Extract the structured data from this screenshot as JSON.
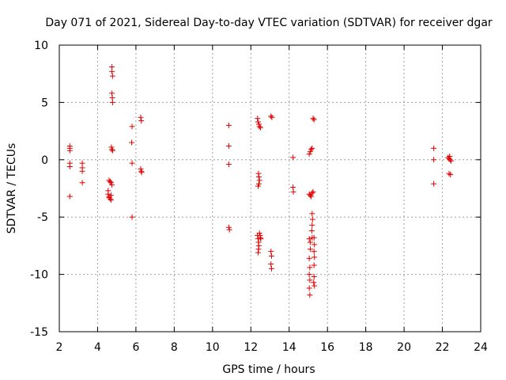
{
  "chart_data": {
    "type": "scatter",
    "title": "Day 071 of 2021, Sidereal Day-to-day VTEC variation (SDTVAR) for receiver dgar",
    "xlabel": "GPS time / hours",
    "ylabel": "SDTVAR / TECUs",
    "xlim": [
      2,
      24
    ],
    "ylim": [
      -15,
      10
    ],
    "xticks": [
      2,
      4,
      6,
      8,
      10,
      12,
      14,
      16,
      18,
      20,
      22,
      24
    ],
    "yticks": [
      -15,
      -10,
      -5,
      0,
      5,
      10
    ],
    "grid": true,
    "legend": "none",
    "marker": "plus",
    "color": "#e00000",
    "series": [
      {
        "name": "SDTVAR",
        "points": [
          [
            2.55,
            1.2
          ],
          [
            2.55,
            1.0
          ],
          [
            2.55,
            0.8
          ],
          [
            2.55,
            -0.3
          ],
          [
            2.55,
            -0.6
          ],
          [
            2.55,
            -3.2
          ],
          [
            3.2,
            -0.3
          ],
          [
            3.2,
            -0.7
          ],
          [
            3.2,
            -1.0
          ],
          [
            3.2,
            -2.0
          ],
          [
            4.55,
            -2.7
          ],
          [
            4.55,
            -3.0
          ],
          [
            4.6,
            -3.2
          ],
          [
            4.6,
            -3.3
          ],
          [
            4.65,
            -3.4
          ],
          [
            4.7,
            -3.1
          ],
          [
            4.7,
            -3.5
          ],
          [
            4.6,
            -1.8
          ],
          [
            4.65,
            -1.9
          ],
          [
            4.7,
            -2.0
          ],
          [
            4.75,
            -2.2
          ],
          [
            4.75,
            8.1
          ],
          [
            4.75,
            7.7
          ],
          [
            4.78,
            7.3
          ],
          [
            4.75,
            5.8
          ],
          [
            4.77,
            5.4
          ],
          [
            4.78,
            5.0
          ],
          [
            4.72,
            1.1
          ],
          [
            4.75,
            0.9
          ],
          [
            4.78,
            0.8
          ],
          [
            5.8,
            2.9
          ],
          [
            5.78,
            1.5
          ],
          [
            5.8,
            -0.3
          ],
          [
            5.8,
            -5.0
          ],
          [
            6.25,
            3.7
          ],
          [
            6.28,
            3.4
          ],
          [
            6.25,
            -0.8
          ],
          [
            6.28,
            -1.0
          ],
          [
            6.3,
            -1.1
          ],
          [
            10.85,
            3.0
          ],
          [
            10.85,
            1.2
          ],
          [
            10.85,
            -0.4
          ],
          [
            10.85,
            -5.9
          ],
          [
            10.88,
            -6.1
          ],
          [
            12.35,
            3.6
          ],
          [
            12.38,
            3.3
          ],
          [
            12.42,
            3.1
          ],
          [
            12.45,
            2.9
          ],
          [
            12.5,
            2.8
          ],
          [
            12.4,
            -1.2
          ],
          [
            12.42,
            -1.5
          ],
          [
            12.45,
            -1.8
          ],
          [
            12.42,
            -2.1
          ],
          [
            12.38,
            -2.3
          ],
          [
            12.35,
            -6.6
          ],
          [
            12.38,
            -6.9
          ],
          [
            12.4,
            -7.2
          ],
          [
            12.42,
            -7.5
          ],
          [
            12.4,
            -7.8
          ],
          [
            12.38,
            -8.1
          ],
          [
            12.45,
            -6.4
          ],
          [
            12.48,
            -6.6
          ],
          [
            12.5,
            -6.8
          ],
          [
            12.52,
            -6.9
          ],
          [
            13.05,
            3.8
          ],
          [
            13.1,
            3.7
          ],
          [
            13.05,
            -8.0
          ],
          [
            13.08,
            -8.4
          ],
          [
            13.05,
            -9.1
          ],
          [
            13.08,
            -9.5
          ],
          [
            14.2,
            0.2
          ],
          [
            14.2,
            -2.4
          ],
          [
            14.22,
            -2.8
          ],
          [
            15.05,
            0.5
          ],
          [
            15.1,
            0.7
          ],
          [
            15.15,
            0.9
          ],
          [
            15.2,
            1.0
          ],
          [
            15.05,
            -3.0
          ],
          [
            15.1,
            -3.1
          ],
          [
            15.15,
            -3.2
          ],
          [
            15.2,
            -2.9
          ],
          [
            15.25,
            -2.8
          ],
          [
            15.25,
            3.6
          ],
          [
            15.3,
            3.5
          ],
          [
            15.05,
            -6.9
          ],
          [
            15.1,
            -7.2
          ],
          [
            15.1,
            -7.8
          ],
          [
            15.05,
            -8.6
          ],
          [
            15.08,
            -9.4
          ],
          [
            15.05,
            -10.0
          ],
          [
            15.08,
            -10.5
          ],
          [
            15.05,
            -11.2
          ],
          [
            15.08,
            -11.8
          ],
          [
            15.2,
            -4.7
          ],
          [
            15.22,
            -5.2
          ],
          [
            15.2,
            -5.7
          ],
          [
            15.18,
            -6.2
          ],
          [
            15.2,
            -6.8
          ],
          [
            15.3,
            -6.8
          ],
          [
            15.32,
            -7.4
          ],
          [
            15.3,
            -8.0
          ],
          [
            15.32,
            -8.5
          ],
          [
            15.3,
            -9.2
          ],
          [
            15.3,
            -10.2
          ],
          [
            15.28,
            -10.7
          ],
          [
            15.32,
            -11.0
          ],
          [
            21.55,
            1.0
          ],
          [
            21.55,
            0.0
          ],
          [
            21.55,
            -2.1
          ],
          [
            22.3,
            0.2
          ],
          [
            22.35,
            0.1
          ],
          [
            22.4,
            0.0
          ],
          [
            22.45,
            -0.1
          ],
          [
            22.38,
            0.3
          ],
          [
            22.35,
            -1.2
          ],
          [
            22.42,
            -1.3
          ]
        ]
      }
    ]
  }
}
